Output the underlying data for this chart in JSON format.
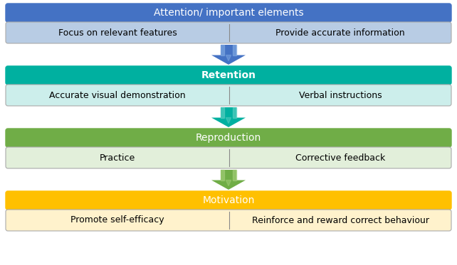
{
  "stages": [
    {
      "name": "Attention/ important elements",
      "header_color": "#4472C4",
      "sub_color": "#B8CCE4",
      "sub_items": [
        "Focus on relevant features",
        "Provide accurate information"
      ],
      "header_text_color": "#FFFFFF",
      "sub_text_color": "#000000",
      "header_bold": false,
      "arrow_color": "#4472C4",
      "arrow_highlight": "#7DA6E0"
    },
    {
      "name": "Retention",
      "header_color": "#00B0A0",
      "sub_color": "#CCEEEB",
      "sub_items": [
        "Accurate visual demonstration",
        "Verbal instructions"
      ],
      "header_text_color": "#FFFFFF",
      "sub_text_color": "#000000",
      "header_bold": true,
      "arrow_color": "#00B0A0",
      "arrow_highlight": "#55CCBE"
    },
    {
      "name": "Reproduction",
      "header_color": "#70AD47",
      "sub_color": "#E2EFDA",
      "sub_items": [
        "Practice",
        "Corrective feedback"
      ],
      "header_text_color": "#FFFFFF",
      "sub_text_color": "#000000",
      "header_bold": false,
      "arrow_color": "#70AD47",
      "arrow_highlight": "#A0CC75"
    },
    {
      "name": "Motivation",
      "header_color": "#FFC000",
      "sub_color": "#FFF2CC",
      "sub_items": [
        "Promote self-efficacy",
        "Reinforce and reward correct behaviour"
      ],
      "header_text_color": "#FFFFFF",
      "sub_text_color": "#000000",
      "header_bold": false,
      "arrow_color": null,
      "arrow_highlight": null
    }
  ],
  "fig_width": 6.42,
  "fig_height": 3.73,
  "dpi": 100,
  "background_color": "#FFFFFF"
}
